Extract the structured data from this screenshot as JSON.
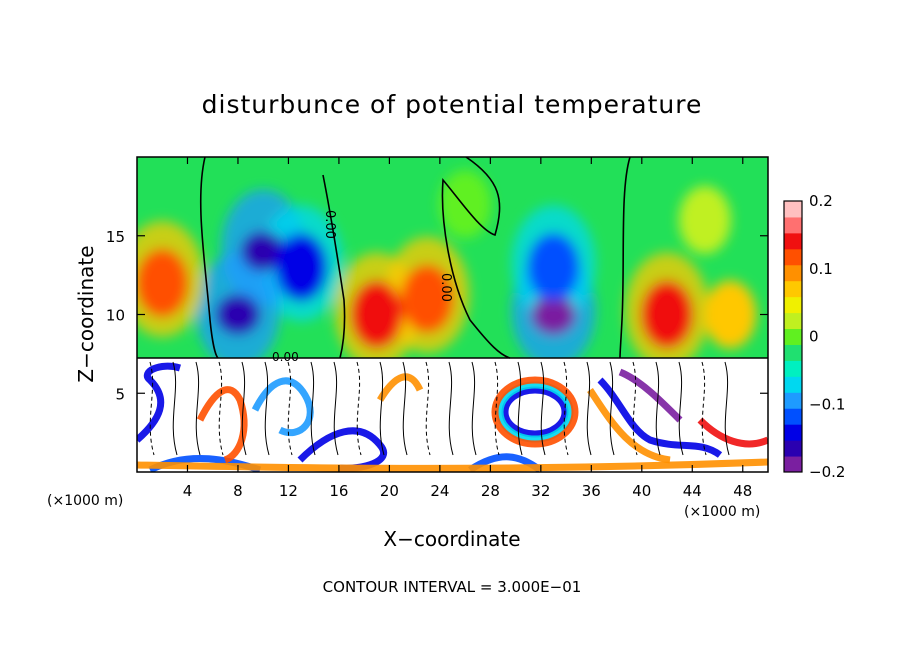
{
  "chart_data": {
    "type": "heatmap",
    "title": "disturbunce of potential temperature",
    "xlabel": "X−coordinate",
    "ylabel": "Z−coordinate",
    "x_unit_left": "(×1000 m)",
    "x_unit_right": "(×1000 m)",
    "xlim": [
      0,
      50
    ],
    "ylim": [
      0,
      20
    ],
    "x_ticks": [
      4,
      8,
      12,
      16,
      20,
      24,
      28,
      32,
      36,
      40,
      44,
      48
    ],
    "y_ticks": [
      5,
      10,
      15
    ],
    "colorbar": {
      "range": [
        -0.2,
        0.2
      ],
      "ticks": [
        0.2,
        0.1,
        0,
        -0.1,
        -0.2
      ],
      "tick_labels": [
        "0.2",
        "0.1",
        "0",
        "−0.1",
        "−0.2"
      ],
      "colors": [
        "#7a1fa0",
        "#2a00b0",
        "#0000e6",
        "#0050ff",
        "#1e9bff",
        "#00d8f0",
        "#00f0c0",
        "#20e070",
        "#60f020",
        "#c0f020",
        "#f0f000",
        "#ffc800",
        "#ff9000",
        "#ff5000",
        "#f01010",
        "#ff7070",
        "#ffc0c0"
      ]
    },
    "contour_label": "0.00",
    "footer": "CONTOUR INTERVAL = 3.000E−01",
    "upper_region_zmin": 7.5,
    "features": [
      {
        "x": 10,
        "z": 14,
        "value": -0.17
      },
      {
        "x": 13,
        "z": 13,
        "value": -0.14
      },
      {
        "x": 8,
        "z": 10,
        "value": -0.18
      },
      {
        "x": 2,
        "z": 12,
        "value": 0.12
      },
      {
        "x": 23,
        "z": 11,
        "value": 0.13
      },
      {
        "x": 19,
        "z": 10,
        "value": 0.14
      },
      {
        "x": 33,
        "z": 10,
        "value": -0.2
      },
      {
        "x": 33,
        "z": 13,
        "value": -0.12
      },
      {
        "x": 42,
        "z": 10,
        "value": 0.14
      },
      {
        "x": 47,
        "z": 10,
        "value": 0.08
      },
      {
        "x": 26,
        "z": 17,
        "value": 0.01
      },
      {
        "x": 45,
        "z": 16,
        "value": 0.03
      }
    ]
  }
}
